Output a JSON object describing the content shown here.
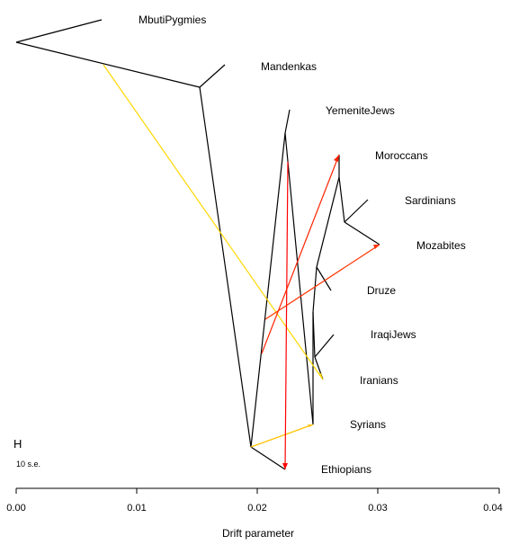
{
  "populations": [
    "MbutiPygmies",
    "Mandenkas",
    "YemeniteJews",
    "Moroccans",
    "Sardinians",
    "Mozabites",
    "Druze",
    "IraqiJews",
    "Iranians",
    "Syrians",
    "Ethiopians"
  ],
  "axis": {
    "title": "Drift parameter",
    "ticks": [
      "0.00",
      "0.01",
      "0.02",
      "0.03",
      "0.04"
    ],
    "range": [
      0.0,
      0.04
    ]
  },
  "legend": {
    "symbol": "H",
    "scale_label": "10 s.e."
  },
  "colors": {
    "tree": "#000000",
    "migration_weak": "#FFD700",
    "migration_strong": "#FF0000"
  }
}
